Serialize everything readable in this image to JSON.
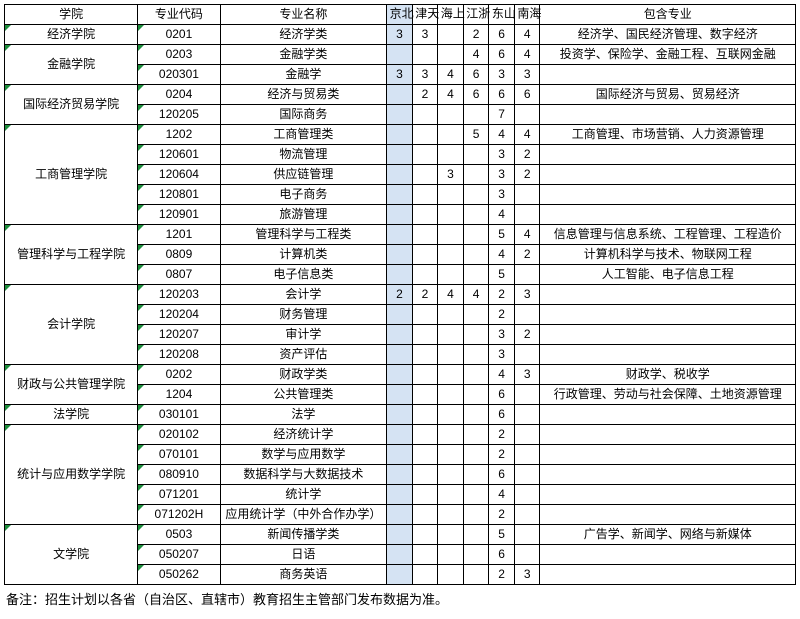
{
  "columns": {
    "college": "学院",
    "code": "专业代码",
    "major": "专业名称",
    "provinces": [
      "北京",
      "天津",
      "上海",
      "浙江",
      "山东",
      "海南"
    ],
    "incl": "包含专业"
  },
  "highlight_col_index": 0,
  "highlight_color": "#d5e3f3",
  "border_color": "#000000",
  "triangle_color": "#1e8e3e",
  "footnote": "备注：招生计划以各省（自治区、直辖市）教育招生主管部门发布数据为准。",
  "colleges": [
    {
      "name": "经济学院",
      "rows": [
        {
          "code": "0201",
          "major": "经济学类",
          "vals": [
            "3",
            "3",
            "",
            "2",
            "6",
            "4"
          ],
          "incl": "经济学、国民经济管理、数字经济"
        }
      ]
    },
    {
      "name": "金融学院",
      "rows": [
        {
          "code": "0203",
          "major": "金融学类",
          "vals": [
            "",
            "",
            "",
            "4",
            "6",
            "4"
          ],
          "incl": "投资学、保险学、金融工程、互联网金融"
        },
        {
          "code": "020301",
          "major": "金融学",
          "vals": [
            "3",
            "3",
            "4",
            "6",
            "3",
            "3"
          ],
          "incl": ""
        }
      ]
    },
    {
      "name": "国际经济贸易学院",
      "rows": [
        {
          "code": "0204",
          "major": "经济与贸易类",
          "vals": [
            "",
            "2",
            "4",
            "6",
            "6",
            "6"
          ],
          "incl": "国际经济与贸易、贸易经济"
        },
        {
          "code": "120205",
          "major": "国际商务",
          "vals": [
            "",
            "",
            "",
            "",
            "7",
            ""
          ],
          "incl": ""
        }
      ]
    },
    {
      "name": "工商管理学院",
      "rows": [
        {
          "code": "1202",
          "major": "工商管理类",
          "vals": [
            "",
            "",
            "",
            "5",
            "4",
            "4"
          ],
          "incl": "工商管理、市场营销、人力资源管理"
        },
        {
          "code": "120601",
          "major": "物流管理",
          "vals": [
            "",
            "",
            "",
            "",
            "3",
            "2"
          ],
          "incl": ""
        },
        {
          "code": "120604",
          "major": "供应链管理",
          "vals": [
            "",
            "",
            "3",
            "",
            "3",
            "2"
          ],
          "incl": ""
        },
        {
          "code": "120801",
          "major": "电子商务",
          "vals": [
            "",
            "",
            "",
            "",
            "3",
            ""
          ],
          "incl": ""
        },
        {
          "code": "120901",
          "major": "旅游管理",
          "vals": [
            "",
            "",
            "",
            "",
            "4",
            ""
          ],
          "incl": ""
        }
      ]
    },
    {
      "name": "管理科学与工程学院",
      "rows": [
        {
          "code": "1201",
          "major": "管理科学与工程类",
          "vals": [
            "",
            "",
            "",
            "",
            "5",
            "4"
          ],
          "incl": "信息管理与信息系统、工程管理、工程造价"
        },
        {
          "code": "0809",
          "major": "计算机类",
          "vals": [
            "",
            "",
            "",
            "",
            "4",
            "2"
          ],
          "incl": "计算机科学与技术、物联网工程"
        },
        {
          "code": "0807",
          "major": "电子信息类",
          "vals": [
            "",
            "",
            "",
            "",
            "5",
            ""
          ],
          "incl": "人工智能、电子信息工程"
        }
      ]
    },
    {
      "name": "会计学院",
      "rows": [
        {
          "code": "120203",
          "major": "会计学",
          "vals": [
            "2",
            "2",
            "4",
            "4",
            "2",
            "3"
          ],
          "incl": ""
        },
        {
          "code": "120204",
          "major": "财务管理",
          "vals": [
            "",
            "",
            "",
            "",
            "2",
            ""
          ],
          "incl": ""
        },
        {
          "code": "120207",
          "major": "审计学",
          "vals": [
            "",
            "",
            "",
            "",
            "3",
            "2"
          ],
          "incl": ""
        },
        {
          "code": "120208",
          "major": "资产评估",
          "vals": [
            "",
            "",
            "",
            "",
            "3",
            ""
          ],
          "incl": ""
        }
      ]
    },
    {
      "name": "财政与公共管理学院",
      "rows": [
        {
          "code": "0202",
          "major": "财政学类",
          "vals": [
            "",
            "",
            "",
            "",
            "4",
            "3"
          ],
          "incl": "财政学、税收学"
        },
        {
          "code": "1204",
          "major": "公共管理类",
          "vals": [
            "",
            "",
            "",
            "",
            "6",
            ""
          ],
          "incl": "行政管理、劳动与社会保障、土地资源管理"
        }
      ]
    },
    {
      "name": "法学院",
      "rows": [
        {
          "code": "030101",
          "major": "法学",
          "vals": [
            "",
            "",
            "",
            "",
            "6",
            ""
          ],
          "incl": ""
        }
      ]
    },
    {
      "name": "统计与应用数学学院",
      "rows": [
        {
          "code": "020102",
          "major": "经济统计学",
          "vals": [
            "",
            "",
            "",
            "",
            "2",
            ""
          ],
          "incl": ""
        },
        {
          "code": "070101",
          "major": "数学与应用数学",
          "vals": [
            "",
            "",
            "",
            "",
            "2",
            ""
          ],
          "incl": ""
        },
        {
          "code": "080910",
          "major": "数据科学与大数据技术",
          "vals": [
            "",
            "",
            "",
            "",
            "6",
            ""
          ],
          "incl": ""
        },
        {
          "code": "071201",
          "major": "统计学",
          "vals": [
            "",
            "",
            "",
            "",
            "4",
            ""
          ],
          "incl": ""
        },
        {
          "code": "071202H",
          "major": "应用统计学（中外合作办学）",
          "vals": [
            "",
            "",
            "",
            "",
            "2",
            ""
          ],
          "incl": ""
        }
      ]
    },
    {
      "name": "文学院",
      "rows": [
        {
          "code": "0503",
          "major": "新闻传播学类",
          "vals": [
            "",
            "",
            "",
            "",
            "5",
            ""
          ],
          "incl": "广告学、新闻学、网络与新媒体"
        },
        {
          "code": "050207",
          "major": "日语",
          "vals": [
            "",
            "",
            "",
            "",
            "6",
            ""
          ],
          "incl": ""
        },
        {
          "code": "050262",
          "major": "商务英语",
          "vals": [
            "",
            "",
            "",
            "",
            "2",
            "3"
          ],
          "incl": ""
        }
      ]
    }
  ]
}
